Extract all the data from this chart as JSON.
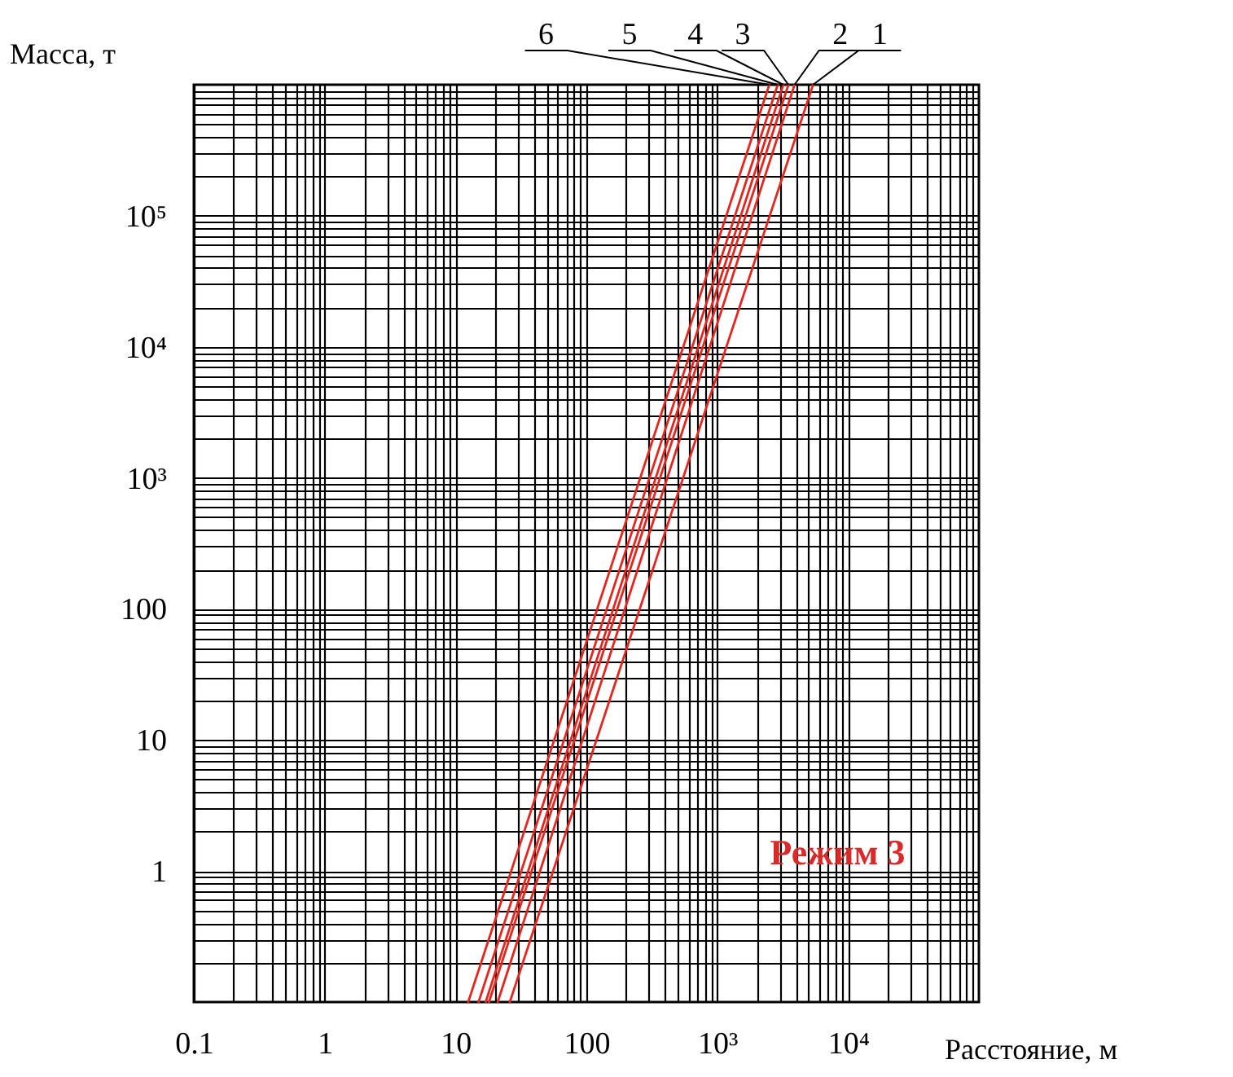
{
  "chart_data": {
    "type": "line",
    "xlabel": "Расстояние, м",
    "ylabel": "Масса, т",
    "log": "xy",
    "grid": true,
    "xlim": [
      0.1,
      100000
    ],
    "ylim": [
      0.1,
      1000000
    ],
    "xticks": [
      0.1,
      {
        "value": 0.2,
        "label": null
      },
      {
        "value": 0.3,
        "label": null
      },
      {
        "value": 0.4,
        "label": null
      },
      {
        "value": 0.5,
        "label": null
      },
      {
        "value": 0.6,
        "label": null
      },
      {
        "value": 0.7,
        "label": null
      },
      {
        "value": 0.8,
        "label": null
      },
      {
        "value": 0.9,
        "label": null
      },
      1,
      {
        "value": 2,
        "label": null
      },
      {
        "value": 3,
        "label": null
      },
      {
        "value": 4,
        "label": null
      },
      {
        "value": 5,
        "label": null
      },
      {
        "value": 6,
        "label": null
      },
      {
        "value": 7,
        "label": null
      },
      {
        "value": 8,
        "label": null
      },
      {
        "value": 9,
        "label": null
      },
      10,
      {
        "value": 20,
        "label": null
      },
      {
        "value": 30,
        "label": null
      },
      {
        "value": 40,
        "label": null
      },
      {
        "value": 50,
        "label": null
      },
      {
        "value": 60,
        "label": null
      },
      {
        "value": 70,
        "label": null
      },
      {
        "value": 80,
        "label": null
      },
      {
        "value": 90,
        "label": null
      },
      100,
      {
        "value": 200,
        "label": null
      },
      {
        "value": 300,
        "label": null
      },
      {
        "value": 400,
        "label": null
      },
      {
        "value": 500,
        "label": null
      },
      {
        "value": 600,
        "label": null
      },
      {
        "value": 700,
        "label": null
      },
      {
        "value": 800,
        "label": null
      },
      {
        "value": 900,
        "label": null
      },
      {
        "value": 1000,
        "label": "10³"
      },
      {
        "value": 2000,
        "label": null
      },
      {
        "value": 3000,
        "label": null
      },
      {
        "value": 4000,
        "label": null
      },
      {
        "value": 5000,
        "label": null
      },
      {
        "value": 6000,
        "label": null
      },
      {
        "value": 7000,
        "label": null
      },
      {
        "value": 8000,
        "label": null
      },
      {
        "value": 9000,
        "label": null
      },
      {
        "value": 10000,
        "label": "10⁴"
      },
      {
        "value": 20000,
        "label": null
      },
      {
        "value": 30000,
        "label": null
      },
      {
        "value": 40000,
        "label": null
      },
      {
        "value": 50000,
        "label": null
      },
      {
        "value": 60000,
        "label": null
      },
      {
        "value": 70000,
        "label": null
      },
      {
        "value": 80000,
        "label": null
      },
      {
        "value": 90000,
        "label": null
      }
    ],
    "yticks": [
      {
        "value": 0.2,
        "label": null
      },
      {
        "value": 0.3,
        "label": null
      },
      {
        "value": 0.4,
        "label": null
      },
      {
        "value": 0.5,
        "label": null
      },
      {
        "value": 0.6,
        "label": null
      },
      {
        "value": 0.7,
        "label": null
      },
      {
        "value": 0.8,
        "label": null
      },
      {
        "value": 0.9,
        "label": null
      },
      1,
      {
        "value": 2,
        "label": null
      },
      {
        "value": 3,
        "label": null
      },
      {
        "value": 4,
        "label": null
      },
      {
        "value": 5,
        "label": null
      },
      {
        "value": 6,
        "label": null
      },
      {
        "value": 7,
        "label": null
      },
      {
        "value": 8,
        "label": null
      },
      {
        "value": 9,
        "label": null
      },
      10,
      {
        "value": 20,
        "label": null
      },
      {
        "value": 30,
        "label": null
      },
      {
        "value": 40,
        "label": null
      },
      {
        "value": 50,
        "label": null
      },
      {
        "value": 60,
        "label": null
      },
      {
        "value": 70,
        "label": null
      },
      {
        "value": 80,
        "label": null
      },
      {
        "value": 90,
        "label": null
      },
      100,
      {
        "value": 200,
        "label": null
      },
      {
        "value": 300,
        "label": null
      },
      {
        "value": 400,
        "label": null
      },
      {
        "value": 500,
        "label": null
      },
      {
        "value": 600,
        "label": null
      },
      {
        "value": 700,
        "label": null
      },
      {
        "value": 800,
        "label": null
      },
      {
        "value": 900,
        "label": null
      },
      {
        "value": 1000,
        "label": "10³"
      },
      {
        "value": 2000,
        "label": null
      },
      {
        "value": 3000,
        "label": null
      },
      {
        "value": 4000,
        "label": null
      },
      {
        "value": 5000,
        "label": null
      },
      {
        "value": 6000,
        "label": null
      },
      {
        "value": 7000,
        "label": null
      },
      {
        "value": 8000,
        "label": null
      },
      {
        "value": 9000,
        "label": null
      },
      {
        "value": 10000,
        "label": "10⁴"
      },
      {
        "value": 20000,
        "label": null
      },
      {
        "value": 30000,
        "label": null
      },
      {
        "value": 40000,
        "label": null
      },
      {
        "value": 50000,
        "label": null
      },
      {
        "value": 60000,
        "label": null
      },
      {
        "value": 70000,
        "label": null
      },
      {
        "value": 80000,
        "label": null
      },
      {
        "value": 90000,
        "label": null
      },
      {
        "value": 100000,
        "label": "10⁵"
      },
      {
        "value": 200000,
        "label": null
      },
      {
        "value": 300000,
        "label": null
      },
      {
        "value": 400000,
        "label": null
      },
      {
        "value": 500000,
        "label": null
      },
      {
        "value": 600000,
        "label": null
      },
      {
        "value": 700000,
        "label": null
      },
      {
        "value": 800000,
        "label": null
      },
      {
        "value": 900000,
        "label": null
      }
    ],
    "series": [
      {
        "name": "1",
        "color": "#e4261f",
        "x": [
          26,
          5400
        ],
        "values": [
          0.1,
          1000000
        ]
      },
      {
        "name": "2",
        "color": "#e4261f",
        "x": [
          21,
          3900
        ],
        "values": [
          0.1,
          1000000
        ]
      },
      {
        "name": "3",
        "color": "#e4261f",
        "x": [
          18,
          3500
        ],
        "values": [
          0.1,
          1000000
        ]
      },
      {
        "name": "4",
        "color": "#e4261f",
        "x": [
          17,
          3200
        ],
        "values": [
          0.1,
          1000000
        ]
      },
      {
        "name": "5",
        "color": "#e4261f",
        "x": [
          15,
          2900
        ],
        "values": [
          0.1,
          1000000
        ]
      },
      {
        "name": "6",
        "color": "#e4261f",
        "x": [
          12.5,
          2500
        ],
        "values": [
          0.1,
          1000000
        ]
      }
    ],
    "annotations": [
      "Режим 3"
    ]
  }
}
